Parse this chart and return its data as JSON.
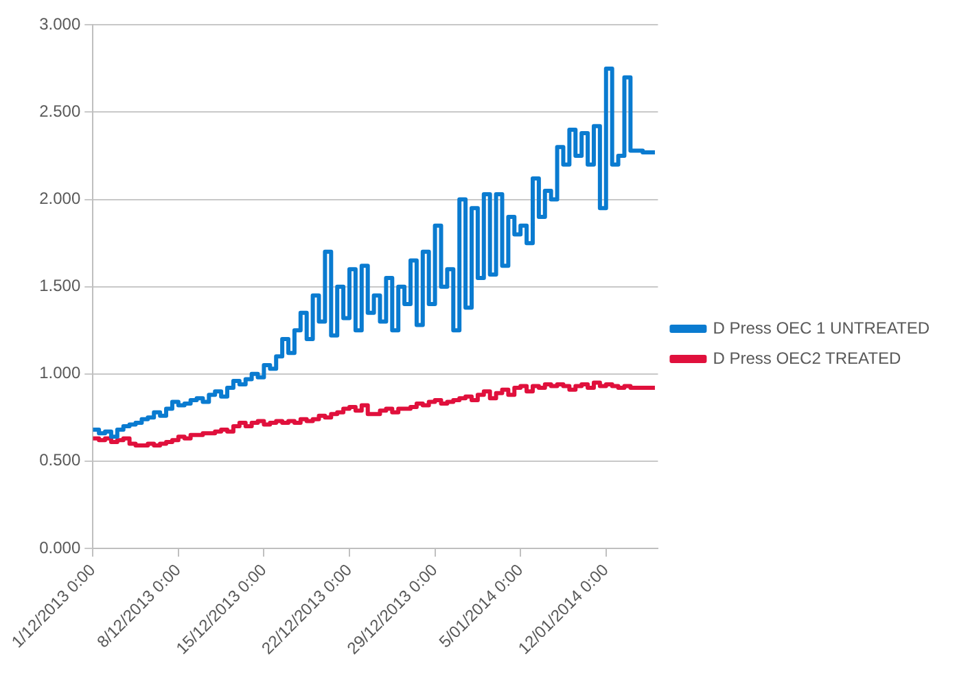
{
  "chart_data": {
    "type": "step",
    "x": [
      "2013-12-01T00:00",
      "2013-12-01T12:00",
      "2013-12-02T00:00",
      "2013-12-02T12:00",
      "2013-12-03T00:00",
      "2013-12-03T12:00",
      "2013-12-04T00:00",
      "2013-12-04T12:00",
      "2013-12-05T00:00",
      "2013-12-05T12:00",
      "2013-12-06T00:00",
      "2013-12-06T12:00",
      "2013-12-07T00:00",
      "2013-12-07T12:00",
      "2013-12-08T00:00",
      "2013-12-08T12:00",
      "2013-12-09T00:00",
      "2013-12-09T12:00",
      "2013-12-10T00:00",
      "2013-12-10T12:00",
      "2013-12-11T00:00",
      "2013-12-11T12:00",
      "2013-12-12T00:00",
      "2013-12-12T12:00",
      "2013-12-13T00:00",
      "2013-12-13T12:00",
      "2013-12-14T00:00",
      "2013-12-14T12:00",
      "2013-12-15T00:00",
      "2013-12-15T12:00",
      "2013-12-16T00:00",
      "2013-12-16T12:00",
      "2013-12-17T00:00",
      "2013-12-17T12:00",
      "2013-12-18T00:00",
      "2013-12-18T12:00",
      "2013-12-19T00:00",
      "2013-12-19T12:00",
      "2013-12-20T00:00",
      "2013-12-20T12:00",
      "2013-12-21T00:00",
      "2013-12-21T12:00",
      "2013-12-22T00:00",
      "2013-12-22T12:00",
      "2013-12-23T00:00",
      "2013-12-23T12:00",
      "2013-12-24T00:00",
      "2013-12-24T12:00",
      "2013-12-25T00:00",
      "2013-12-25T12:00",
      "2013-12-26T00:00",
      "2013-12-26T12:00",
      "2013-12-27T00:00",
      "2013-12-27T12:00",
      "2013-12-28T00:00",
      "2013-12-28T12:00",
      "2013-12-29T00:00",
      "2013-12-29T12:00",
      "2013-12-30T00:00",
      "2013-12-30T12:00",
      "2013-12-31T00:00",
      "2013-12-31T12:00",
      "2014-01-01T00:00",
      "2014-01-01T12:00",
      "2014-01-02T00:00",
      "2014-01-02T12:00",
      "2014-01-03T00:00",
      "2014-01-03T12:00",
      "2014-01-04T00:00",
      "2014-01-04T12:00",
      "2014-01-05T00:00",
      "2014-01-05T12:00",
      "2014-01-06T00:00",
      "2014-01-06T12:00",
      "2014-01-07T00:00",
      "2014-01-07T12:00",
      "2014-01-08T00:00",
      "2014-01-08T12:00",
      "2014-01-09T00:00",
      "2014-01-09T12:00",
      "2014-01-10T00:00",
      "2014-01-10T12:00",
      "2014-01-11T00:00",
      "2014-01-11T12:00",
      "2014-01-12T00:00",
      "2014-01-12T12:00",
      "2014-01-13T00:00",
      "2014-01-13T12:00",
      "2014-01-14T00:00",
      "2014-01-14T12:00",
      "2014-01-15T00:00",
      "2014-01-15T12:00",
      "2014-01-16T00:00"
    ],
    "series": [
      {
        "name": "D Press OEC 1 UNTREATED",
        "color": "#0a7bd0",
        "values": [
          0.68,
          0.66,
          0.67,
          0.64,
          0.68,
          0.7,
          0.71,
          0.72,
          0.74,
          0.75,
          0.78,
          0.76,
          0.8,
          0.84,
          0.82,
          0.83,
          0.85,
          0.86,
          0.84,
          0.88,
          0.9,
          0.87,
          0.92,
          0.96,
          0.94,
          0.97,
          1.0,
          0.98,
          1.05,
          1.03,
          1.1,
          1.2,
          1.12,
          1.25,
          1.35,
          1.2,
          1.45,
          1.3,
          1.7,
          1.22,
          1.5,
          1.32,
          1.6,
          1.25,
          1.62,
          1.35,
          1.45,
          1.3,
          1.55,
          1.25,
          1.5,
          1.4,
          1.65,
          1.28,
          1.7,
          1.4,
          1.85,
          1.5,
          1.6,
          1.25,
          2.0,
          1.38,
          1.95,
          1.55,
          2.03,
          1.57,
          2.03,
          1.62,
          1.9,
          1.8,
          1.85,
          1.75,
          2.12,
          1.9,
          2.05,
          2.0,
          2.3,
          2.2,
          2.4,
          2.25,
          2.38,
          2.2,
          2.42,
          1.95,
          2.75,
          2.2,
          2.25,
          2.7,
          2.28,
          2.28,
          2.27,
          2.27,
          2.27
        ]
      },
      {
        "name": "D Press OEC2 TREATED",
        "color": "#e0103c",
        "values": [
          0.63,
          0.62,
          0.63,
          0.61,
          0.62,
          0.63,
          0.6,
          0.59,
          0.59,
          0.6,
          0.59,
          0.6,
          0.61,
          0.62,
          0.64,
          0.63,
          0.65,
          0.65,
          0.66,
          0.66,
          0.67,
          0.68,
          0.67,
          0.7,
          0.72,
          0.7,
          0.72,
          0.73,
          0.71,
          0.72,
          0.73,
          0.72,
          0.73,
          0.72,
          0.74,
          0.73,
          0.74,
          0.76,
          0.75,
          0.77,
          0.78,
          0.8,
          0.81,
          0.79,
          0.82,
          0.77,
          0.77,
          0.79,
          0.8,
          0.78,
          0.8,
          0.8,
          0.81,
          0.83,
          0.82,
          0.84,
          0.85,
          0.83,
          0.84,
          0.85,
          0.86,
          0.87,
          0.85,
          0.88,
          0.9,
          0.86,
          0.89,
          0.91,
          0.88,
          0.92,
          0.93,
          0.9,
          0.93,
          0.92,
          0.94,
          0.93,
          0.94,
          0.93,
          0.91,
          0.93,
          0.94,
          0.92,
          0.95,
          0.93,
          0.94,
          0.93,
          0.92,
          0.93,
          0.92,
          0.92,
          0.92,
          0.92,
          0.92
        ]
      }
    ],
    "xlim": [
      "2013-12-01T00:00",
      "2014-01-16T06:00"
    ],
    "xticks": [
      {
        "value": "2013-12-01T00:00",
        "label": "1/12/2013 0:00"
      },
      {
        "value": "2013-12-08T00:00",
        "label": "8/12/2013 0:00"
      },
      {
        "value": "2013-12-15T00:00",
        "label": "15/12/2013 0:00"
      },
      {
        "value": "2013-12-22T00:00",
        "label": "22/12/2013 0:00"
      },
      {
        "value": "2013-12-29T00:00",
        "label": "29/12/2013 0:00"
      },
      {
        "value": "2014-01-05T00:00",
        "label": "5/01/2014 0:00"
      },
      {
        "value": "2014-01-12T00:00",
        "label": "12/01/2014 0:00"
      }
    ],
    "ylim": [
      0,
      3
    ],
    "yticks": [
      {
        "value": 0,
        "label": "0.000"
      },
      {
        "value": 0.5,
        "label": "0.500"
      },
      {
        "value": 1,
        "label": "1.000"
      },
      {
        "value": 1.5,
        "label": "1.500"
      },
      {
        "value": 2,
        "label": "2.000"
      },
      {
        "value": 2.5,
        "label": "2.500"
      },
      {
        "value": 3,
        "label": "3.000"
      }
    ],
    "grid": "y",
    "legend": "right",
    "line_style": "solid",
    "marker": "none"
  }
}
